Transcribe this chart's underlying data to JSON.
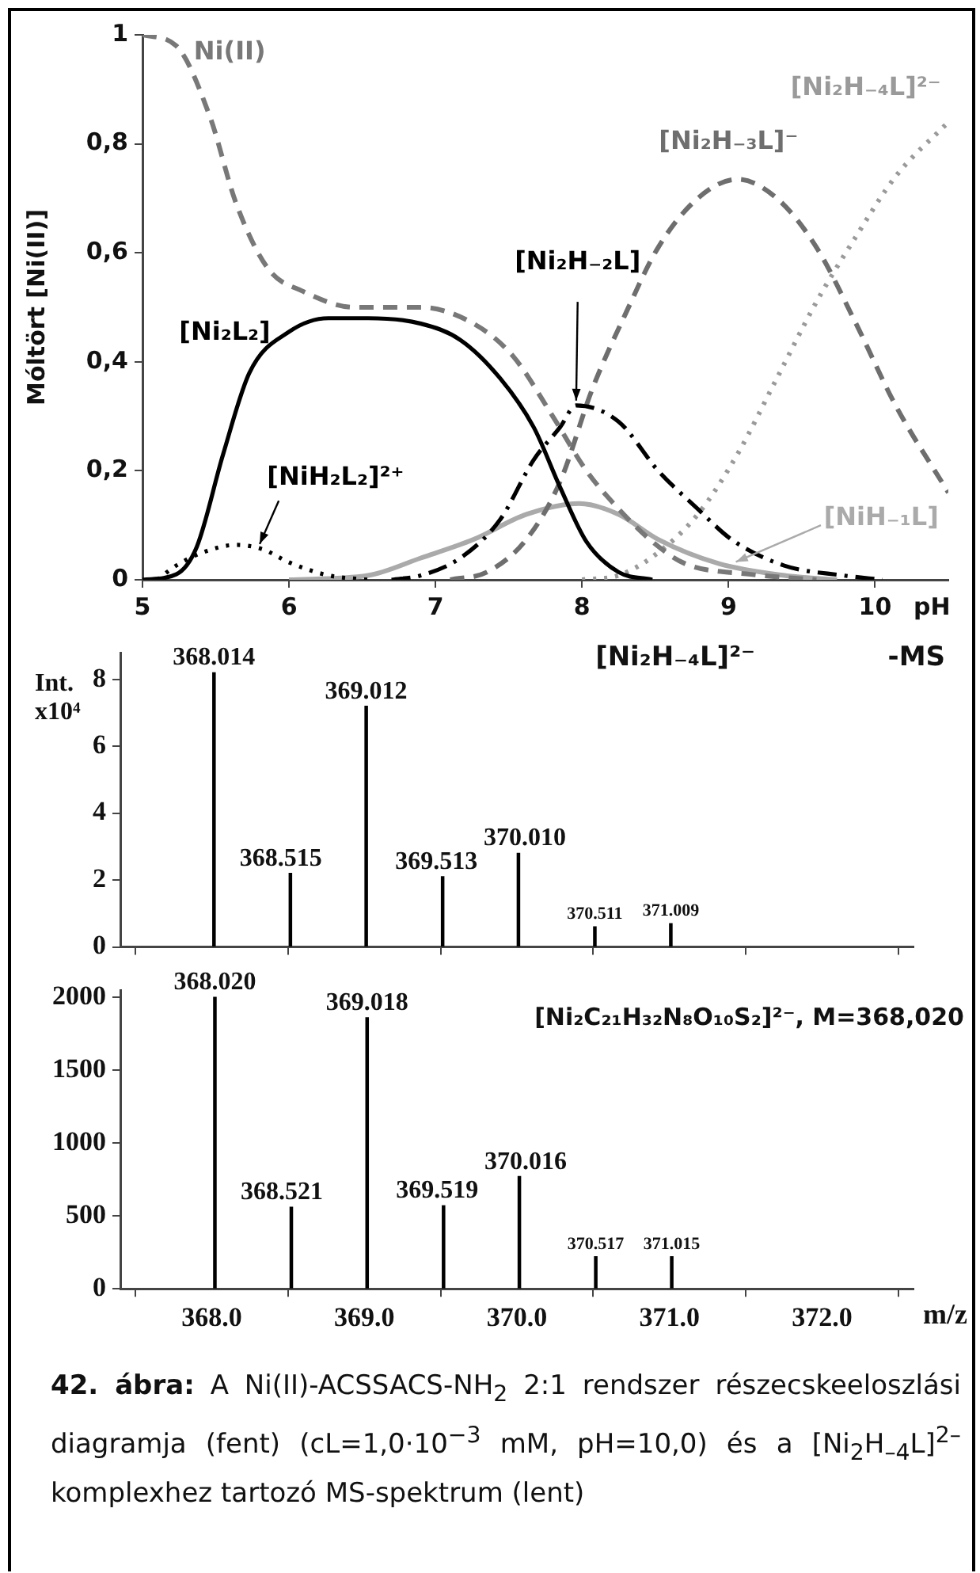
{
  "chart_data": [
    {
      "type": "line",
      "xlabel": "pH",
      "ylabel": "Móltört [Ni(II)]",
      "xlim": [
        5,
        10.5
      ],
      "ylim": [
        0,
        1
      ],
      "xticks": [
        5,
        6,
        7,
        8,
        9,
        10
      ],
      "yticks": [
        0,
        {
          "value": 0.2,
          "label": "0,2"
        },
        {
          "value": 0.4,
          "label": "0,4"
        },
        {
          "value": 0.6,
          "label": "0,6"
        },
        {
          "value": 0.8,
          "label": "0,8"
        },
        1
      ],
      "grid": false,
      "legend": false,
      "marker": "none",
      "series": [
        {
          "name": "Ni(II)",
          "color": "#787878",
          "line_style": "dashed",
          "x": [
            5,
            5.23,
            5.46,
            5.64,
            5.86,
            6.09,
            6.45,
            6.9,
            7.26,
            7.53,
            7.8,
            8.03,
            8.25,
            8.48,
            8.7,
            9.15,
            9.6
          ],
          "values": [
            1,
            0.98,
            0.85,
            0.69,
            0.57,
            0.53,
            0.5,
            0.5,
            0.47,
            0.41,
            0.3,
            0.2,
            0.13,
            0.07,
            0.03,
            0.01,
            0
          ]
        },
        {
          "name": "[Ni₂L₂]",
          "color": "#000000",
          "line_style": "solid",
          "x": [
            5,
            5.23,
            5.37,
            5.55,
            5.73,
            6,
            6.27,
            6.54,
            6.9,
            7.17,
            7.44,
            7.67,
            7.85,
            8.03,
            8.25,
            8.48
          ],
          "values": [
            0,
            0.01,
            0.06,
            0.23,
            0.38,
            0.455,
            0.48,
            0.48,
            0.47,
            0.44,
            0.37,
            0.28,
            0.17,
            0.07,
            0.014,
            0
          ]
        },
        {
          "name": "[NiH₂L₂]²⁺",
          "color": "#000000",
          "line_style": "dotted",
          "x": [
            5.1,
            5.23,
            5.41,
            5.64,
            5.82,
            6,
            6.27,
            6.54
          ],
          "values": [
            0,
            0.026,
            0.05,
            0.064,
            0.056,
            0.032,
            0.008,
            0
          ]
        },
        {
          "name": "[Ni₂H₋₂L]",
          "color": "#000000",
          "line_style": "dashdot",
          "x": [
            6.7,
            6.9,
            7.17,
            7.44,
            7.67,
            7.85,
            7.96,
            8.25,
            8.52,
            8.79,
            9.02,
            9.38,
            9.78,
            10.05
          ],
          "values": [
            0,
            0.008,
            0.04,
            0.11,
            0.22,
            0.28,
            0.32,
            0.29,
            0.2,
            0.13,
            0.074,
            0.026,
            0.008,
            0
          ]
        },
        {
          "name": "[Ni₂H₋₃L]⁻",
          "color": "#6e6e6e",
          "line_style": "dashed",
          "x": [
            7.1,
            7.35,
            7.62,
            7.85,
            8.07,
            8.3,
            8.52,
            8.79,
            9.06,
            9.33,
            9.6,
            9.87,
            10.14,
            10.5
          ],
          "values": [
            0,
            0.014,
            0.074,
            0.18,
            0.35,
            0.49,
            0.61,
            0.7,
            0.735,
            0.7,
            0.61,
            0.47,
            0.32,
            0.16
          ]
        },
        {
          "name": "[Ni₂H₋₄L]²⁻",
          "color": "#9a9a9a",
          "line_style": "dotted",
          "x": [
            8,
            8.25,
            8.52,
            8.79,
            9.06,
            9.33,
            9.6,
            9.87,
            10.14,
            10.5
          ],
          "values": [
            0,
            0.008,
            0.05,
            0.12,
            0.23,
            0.37,
            0.51,
            0.63,
            0.74,
            0.84
          ]
        },
        {
          "name": "[NiH₋₁L]",
          "color": "#aaaaaa",
          "line_style": "solid",
          "x": [
            6,
            6.54,
            6.9,
            7.26,
            7.62,
            7.98,
            8.25,
            8.52,
            8.93,
            9.38,
            9.74
          ],
          "values": [
            0,
            0.008,
            0.04,
            0.074,
            0.12,
            0.14,
            0.12,
            0.074,
            0.03,
            0.008,
            0
          ]
        }
      ]
    },
    {
      "type": "bar",
      "ylabel": "Int. x10⁴",
      "xlim": [
        367.4,
        372.6
      ],
      "ylim": [
        0,
        8.8
      ],
      "tick_labels": "y",
      "xticks": [
        {
          "value": 368,
          "label": null
        },
        {
          "value": 369,
          "label": null
        },
        {
          "value": 370,
          "label": null
        },
        {
          "value": 371,
          "label": null
        },
        {
          "value": 372,
          "label": null
        }
      ],
      "yticks": [
        0,
        2,
        4,
        6,
        8
      ],
      "grid": false,
      "legend": false,
      "color": "#000000",
      "x": [
        368.014,
        368.515,
        369.012,
        369.513,
        370.01,
        370.511,
        371.009
      ],
      "values": [
        8.2,
        2.2,
        7.2,
        2.1,
        2.8,
        0.6,
        0.7
      ],
      "annotations": [
        "[Ni₂H₋₄L]²⁻",
        "-MS",
        {
          "text": "368.014",
          "x": 368.014,
          "y": 8.2
        },
        {
          "text": "368.515",
          "x": 368.515,
          "y": 2.2
        },
        {
          "text": "369.012",
          "x": 369.012,
          "y": 7.2
        },
        {
          "text": "369.513",
          "x": 369.513,
          "y": 2.1
        },
        {
          "text": "370.010",
          "x": 370.01,
          "y": 2.8
        },
        {
          "text": "370.511",
          "x": 370.511,
          "y": 0.6
        },
        {
          "text": "371.009",
          "x": 371.009,
          "y": 0.7
        }
      ]
    },
    {
      "type": "bar",
      "xlabel": "m/z",
      "xlim": [
        367.4,
        372.6
      ],
      "ylim": [
        0,
        2050
      ],
      "xticks": [
        {
          "value": 368,
          "label": "368.0"
        },
        {
          "value": 369,
          "label": "369.0"
        },
        {
          "value": 370,
          "label": "370.0"
        },
        {
          "value": 371,
          "label": "371.0"
        },
        {
          "value": 372,
          "label": "372.0"
        }
      ],
      "yticks": [
        0,
        500,
        1000,
        1500,
        2000
      ],
      "grid": false,
      "legend": false,
      "color": "#000000",
      "x": [
        368.02,
        368.521,
        369.018,
        369.519,
        370.016,
        370.517,
        371.015
      ],
      "values": [
        2000,
        560,
        1860,
        570,
        770,
        220,
        220
      ],
      "annotations": [
        "[Ni₂C₂₁H₃₂N₈O₁₀S₂]²⁻, M=368,020",
        "42. ábra:",
        "A Ni(II)-ACSSACS-NH$_{2}$ 2:1 rendszer részecskeeloszlási diagramja (fent) (cL=1,0·10$^{−3}$ mM, pH=10,0) és a [Ni$_{2}$H$_{–4}$L]$^{2–}$ komplexhez tartozó MS-spektrum (lent)",
        {
          "text": "368.020",
          "x": 368.02,
          "y": 2000
        },
        {
          "text": "368.521",
          "x": 368.521,
          "y": 560
        },
        {
          "text": "369.018",
          "x": 369.018,
          "y": 1860
        },
        {
          "text": "369.519",
          "x": 369.519,
          "y": 570
        },
        {
          "text": "370.016",
          "x": 370.016,
          "y": 770
        },
        {
          "text": "370.517",
          "x": 370.517,
          "y": 220
        },
        {
          "text": "371.015",
          "x": 371.015,
          "y": 220
        }
      ]
    }
  ]
}
